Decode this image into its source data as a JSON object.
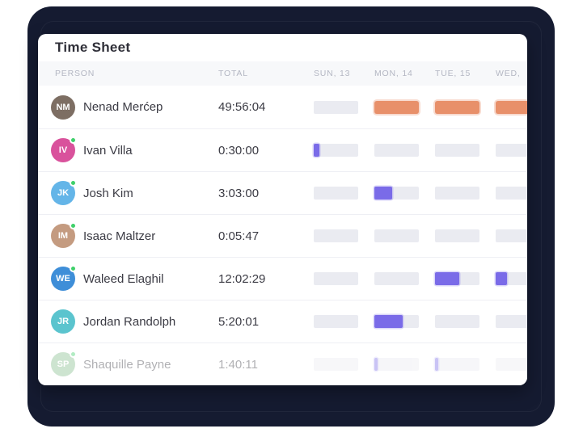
{
  "title": "Time Sheet",
  "columns": {
    "person": "PERSON",
    "total": "TOTAL",
    "days": [
      "SUN, 13",
      "MON, 14",
      "TUE, 15",
      "WED,"
    ]
  },
  "colors": {
    "accent_orange": "#E8906A",
    "accent_purple": "#7A6BE8",
    "bar_track": "#EAEBF1",
    "online_green": "#3FD06A",
    "backdrop_navy": "#151B31",
    "header_text": "#B4B7C3"
  },
  "rows": [
    {
      "name": "Nenad Merćep",
      "initials": "NM",
      "avatar_color": "#7D6E63",
      "online": false,
      "total": "49:56:04",
      "bar_color": "#E8906A",
      "days": [
        0,
        1,
        1,
        1
      ],
      "faded": false
    },
    {
      "name": "Ivan Villa",
      "initials": "IV",
      "avatar_color": "#D9529C",
      "online": true,
      "total": "0:30:00",
      "bar_color": "#7A6BE8",
      "days": [
        0.13,
        0,
        0,
        0
      ],
      "faded": false
    },
    {
      "name": "Josh Kim",
      "initials": "JK",
      "avatar_color": "#64B5E8",
      "online": true,
      "total": "3:03:00",
      "bar_color": "#7A6BE8",
      "days": [
        0,
        0.4,
        0,
        0
      ],
      "faded": false
    },
    {
      "name": "Isaac Maltzer",
      "initials": "IM",
      "avatar_color": "#C49B80",
      "online": true,
      "total": "0:05:47",
      "bar_color": "#7A6BE8",
      "days": [
        0,
        0,
        0,
        0
      ],
      "faded": false
    },
    {
      "name": "Waleed Elaghil",
      "initials": "WE",
      "avatar_color": "#3E8ED8",
      "online": true,
      "total": "12:02:29",
      "bar_color": "#7A6BE8",
      "days": [
        0,
        0,
        0.55,
        0.25
      ],
      "faded": false
    },
    {
      "name": "Jordan Randolph",
      "initials": "JR",
      "avatar_color": "#5BC4CE",
      "online": false,
      "total": "5:20:01",
      "bar_color": "#7A6BE8",
      "days": [
        0,
        0.63,
        0,
        0
      ],
      "faded": false
    },
    {
      "name": "Shaquille Payne",
      "initials": "SP",
      "avatar_color": "#84BD8C",
      "online": true,
      "total": "1:40:11",
      "bar_color": "#7A6BE8",
      "days": [
        0,
        0.08,
        0.08,
        0
      ],
      "faded": true
    }
  ]
}
